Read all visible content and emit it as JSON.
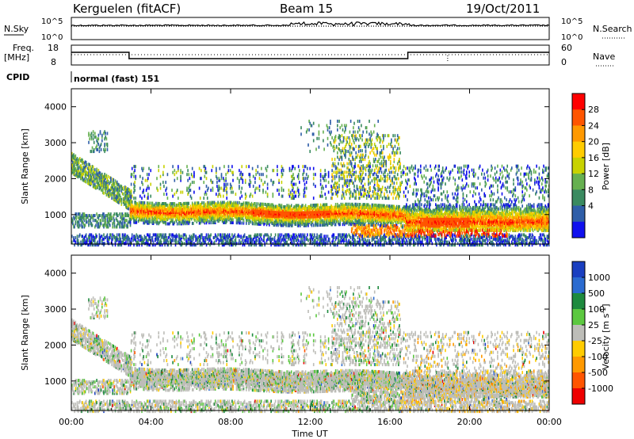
{
  "header": {
    "title": "Kerguelen (fitACF)",
    "beam": "Beam 15",
    "date": "19/Oct/2011"
  },
  "sky_panel": {
    "left_label": "N.Sky",
    "right_label": "N.Search",
    "left_ticks": [
      "10^5",
      "10^0"
    ],
    "right_ticks": [
      "10^5",
      "10^0"
    ]
  },
  "freq_panel": {
    "left_label_1": "Freq.",
    "left_label_2": "[MHz]",
    "right_label": "Nave",
    "left_ticks": [
      "18",
      "8"
    ],
    "right_ticks": [
      "60",
      "0"
    ]
  },
  "cpid": {
    "label": "CPID",
    "value": "normal (fast) 151"
  },
  "chart_data": [
    {
      "type": "heatmap",
      "title": "",
      "ylabel": "Slant Range [km]",
      "xlabel": "",
      "ylim": [
        180,
        4500
      ],
      "yticks": [
        1000,
        2000,
        3000,
        4000
      ],
      "colorbar": {
        "label": "Power [dB]",
        "ticks": [
          "28",
          "24",
          "20",
          "16",
          "12",
          "8",
          "4"
        ],
        "colors": [
          "#ff0000",
          "#ff5500",
          "#ff9900",
          "#ffcc00",
          "#c8d200",
          "#66b050",
          "#3a8a60",
          "#2f5ea8",
          "#1010ee"
        ]
      },
      "bands": [
        {
          "name": "main",
          "x0": 2.9,
          "x1": 17.0,
          "r0": 1000,
          "r1": 1350,
          "mid": 1150,
          "slope": -10
        },
        {
          "name": "late",
          "x0": 16.8,
          "x1": 24.0,
          "r0": 650,
          "r1": 1300,
          "mid": 850,
          "slope": 0
        }
      ]
    },
    {
      "type": "heatmap",
      "title": "",
      "ylabel": "Slant Range [km]",
      "xlabel": "Time UT",
      "ylim": [
        180,
        4500
      ],
      "yticks": [
        1000,
        2000,
        3000,
        4000
      ],
      "colorbar": {
        "label": "Velocity [m s^-1]",
        "ticks": [
          "1000",
          "500",
          "100",
          "25",
          "-25",
          "-100",
          "-500",
          "-1000"
        ],
        "colors": [
          "#1a3fc0",
          "#2b6bd0",
          "#1e8a3e",
          "#5cc840",
          "#bdbdb8",
          "#ffcc00",
          "#ff9900",
          "#ff5500",
          "#ee0000"
        ]
      }
    }
  ],
  "xaxis": {
    "label": "Time UT",
    "ticks": [
      "00:00",
      "04:00",
      "08:00",
      "12:00",
      "16:00",
      "20:00",
      "00:00"
    ]
  }
}
